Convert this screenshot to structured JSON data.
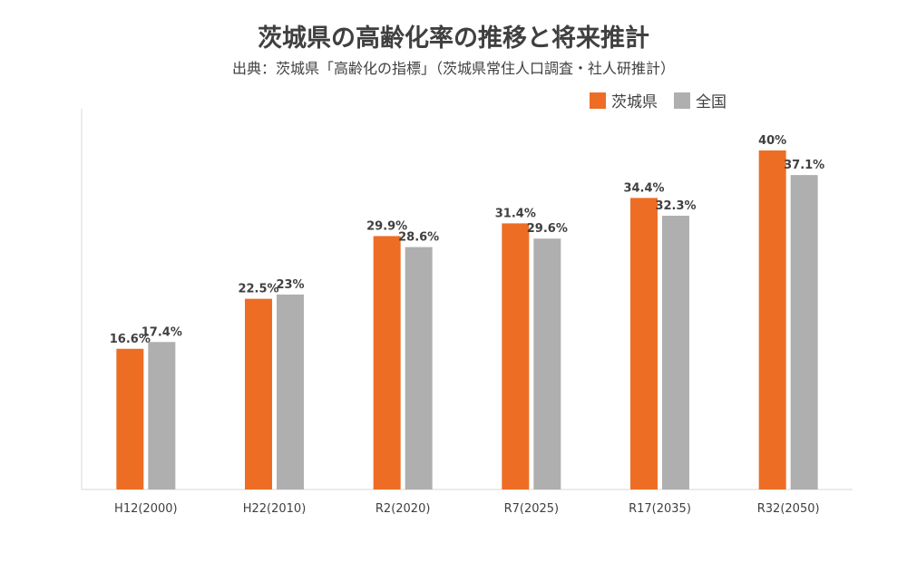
{
  "chart_data": {
    "type": "bar",
    "title": "茨城県の高齢化率の推移と将来推計",
    "subtitle": "出典：茨城県「高齢化の指標」（茨城県常住人口調査・社人研推計）",
    "categories": [
      "H12(2000)",
      "H22(2010)",
      "R2(2020)",
      "R7(2025)",
      "R17(2035)",
      "R32(2050)"
    ],
    "series": [
      {
        "name": "茨城県",
        "color": "#ED6D25",
        "values": [
          16.6,
          22.5,
          29.9,
          31.4,
          34.4,
          40.0
        ],
        "labels": [
          "16.6%",
          "22.5%",
          "29.9%",
          "31.4%",
          "34.4%",
          "40%"
        ]
      },
      {
        "name": "全国",
        "color": "#AFAFAF",
        "values": [
          17.4,
          23.0,
          28.6,
          29.6,
          32.3,
          37.1
        ],
        "labels": [
          "17.4%",
          "23%",
          "28.6%",
          "29.6%",
          "32.3%",
          "37.1%"
        ]
      }
    ],
    "ylim": [
      0,
      40
    ],
    "legend_position": "top-right",
    "grid": false
  }
}
